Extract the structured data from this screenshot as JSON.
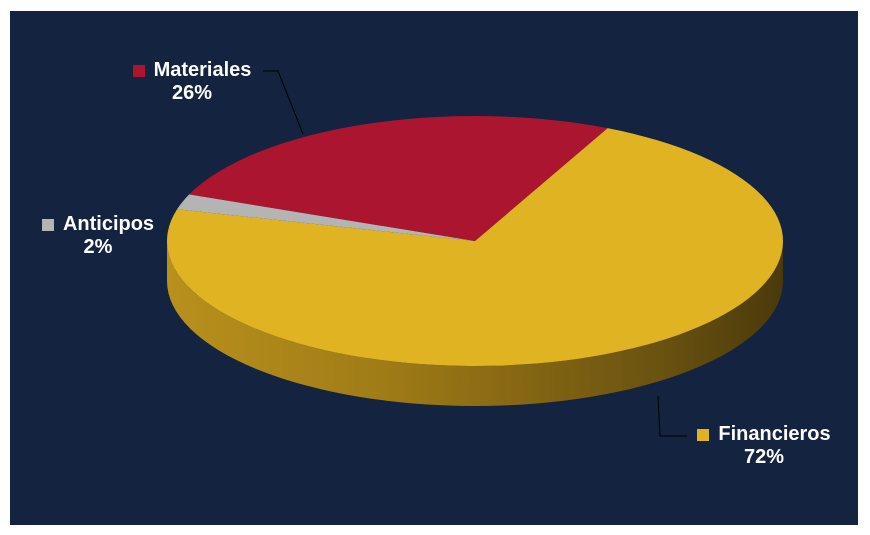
{
  "chart_data": {
    "type": "pie",
    "three_d": true,
    "categories": [
      "Financieros",
      "Anticipos",
      "Materiales"
    ],
    "values": [
      72,
      2,
      26
    ],
    "labels": [
      {
        "name": "Financieros",
        "percent": "72%",
        "color": "#e0b323"
      },
      {
        "name": "Anticipos",
        "percent": "2%",
        "color": "#b4b4b4"
      },
      {
        "name": "Materiales",
        "percent": "26%",
        "color": "#ab1530"
      }
    ],
    "background_color": "#14233f",
    "legend": "none"
  }
}
